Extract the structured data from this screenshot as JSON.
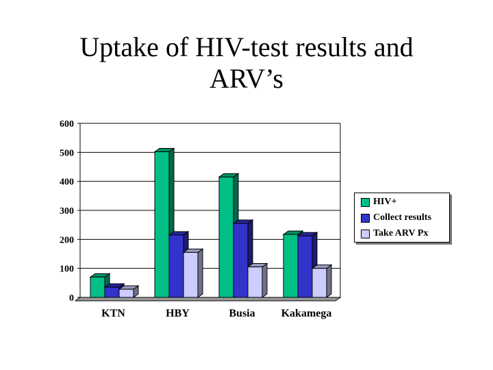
{
  "slide": {
    "title_line1": "Uptake of HIV-test results and",
    "title_line2": "ARV’s"
  },
  "chart_data": {
    "type": "bar",
    "categories": [
      "KTN",
      "HBY",
      "Busia",
      "Kakamega"
    ],
    "series": [
      {
        "name": "HIV+",
        "values": [
          70,
          502,
          415,
          217
        ],
        "color": "#00c088"
      },
      {
        "name": "Collect results",
        "values": [
          35,
          215,
          255,
          212
        ],
        "color": "#3333cc"
      },
      {
        "name": "Take ARV Px",
        "values": [
          28,
          155,
          105,
          100
        ],
        "color": "#ccccff"
      }
    ],
    "ylim": [
      0,
      600
    ],
    "yticks": [
      0,
      100,
      200,
      300,
      400,
      500,
      600
    ],
    "grid": true,
    "legend_position": "right",
    "style": "3d-bar"
  }
}
